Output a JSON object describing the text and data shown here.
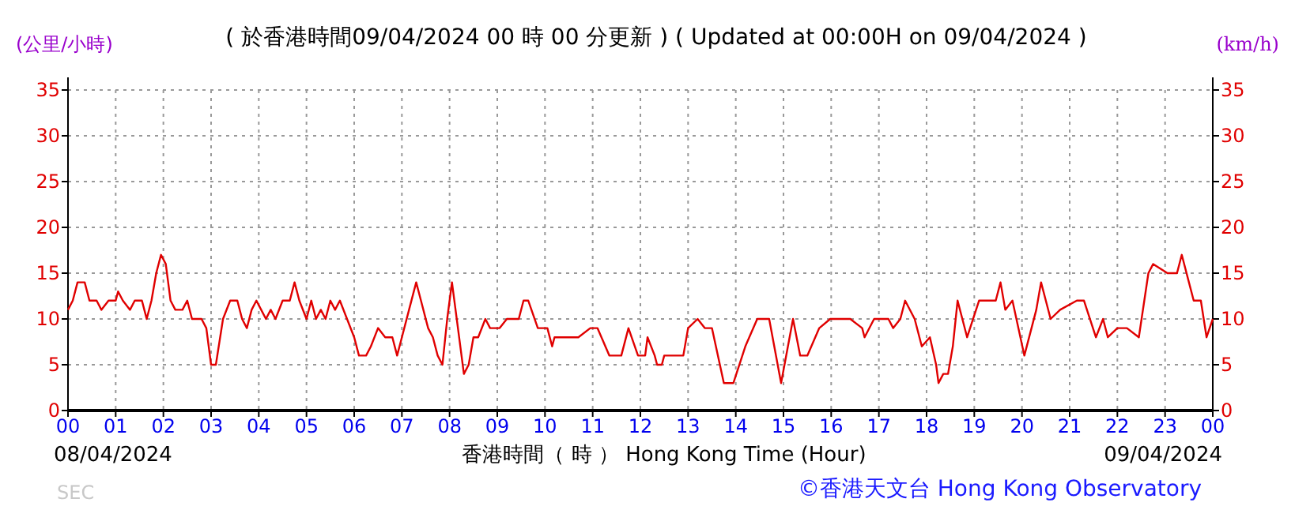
{
  "chart_data": {
    "type": "line",
    "title": "( 於香港時間09/04/2024 00 時 00 分更新 ) ( Updated at 00:00H on 09/04/2024 )",
    "xlabel": "香港時間（ 時 ） Hong Kong Time (Hour)",
    "ylabel": "(公里/小時)",
    "y2label": "(km/h)",
    "annotations": [
      "08/04/2024",
      "09/04/2024",
      "©香港天文台 Hong Kong Observatory",
      "SEC"
    ],
    "xlim": [
      0,
      24
    ],
    "xticks": [
      {
        "value": 0,
        "label": "00"
      },
      {
        "value": 1,
        "label": "01"
      },
      {
        "value": 2,
        "label": "02"
      },
      {
        "value": 3,
        "label": "03"
      },
      {
        "value": 4,
        "label": "04"
      },
      {
        "value": 5,
        "label": "05"
      },
      {
        "value": 6,
        "label": "06"
      },
      {
        "value": 7,
        "label": "07"
      },
      {
        "value": 8,
        "label": "08"
      },
      {
        "value": 9,
        "label": "09"
      },
      {
        "value": 10,
        "label": "10"
      },
      {
        "value": 11,
        "label": "11"
      },
      {
        "value": 12,
        "label": "12"
      },
      {
        "value": 13,
        "label": "13"
      },
      {
        "value": 14,
        "label": "14"
      },
      {
        "value": 15,
        "label": "15"
      },
      {
        "value": 16,
        "label": "16"
      },
      {
        "value": 17,
        "label": "17"
      },
      {
        "value": 18,
        "label": "18"
      },
      {
        "value": 19,
        "label": "19"
      },
      {
        "value": 20,
        "label": "20"
      },
      {
        "value": 21,
        "label": "21"
      },
      {
        "value": 22,
        "label": "22"
      },
      {
        "value": 23,
        "label": "23"
      },
      {
        "value": 24,
        "label": "00"
      }
    ],
    "ylim": [
      0,
      35
    ],
    "yticks": [
      0,
      5,
      10,
      15,
      20,
      25,
      30,
      35
    ],
    "y2lim": [
      0,
      35
    ],
    "y2ticks": [
      0,
      5,
      10,
      15,
      20,
      25,
      30,
      35
    ],
    "grid": true,
    "line_style": "solid",
    "series": [
      {
        "color": "#e00000",
        "x": [
          0,
          0.1,
          0.2,
          0.35,
          0.45,
          0.6,
          0.7,
          0.85,
          1.0,
          1.05,
          1.15,
          1.3,
          1.4,
          1.55,
          1.6,
          1.65,
          1.75,
          1.85,
          1.95,
          2.05,
          2.15,
          2.25,
          2.4,
          2.5,
          2.6,
          2.8,
          2.9,
          3.0,
          3.1,
          3.25,
          3.4,
          3.55,
          3.65,
          3.75,
          3.85,
          3.95,
          4.05,
          4.15,
          4.25,
          4.35,
          4.5,
          4.65,
          4.75,
          4.85,
          5.0,
          5.1,
          5.2,
          5.3,
          5.4,
          5.5,
          5.6,
          5.7,
          5.85,
          6.0,
          6.1,
          6.25,
          6.35,
          6.5,
          6.65,
          6.8,
          6.9,
          7.0,
          7.15,
          7.3,
          7.4,
          7.55,
          7.65,
          7.75,
          7.85,
          7.95,
          8.05,
          8.1,
          8.2,
          8.3,
          8.4,
          8.5,
          8.6,
          8.75,
          8.85,
          9.05,
          9.2,
          9.45,
          9.55,
          9.65,
          9.85,
          10.05,
          10.15,
          10.2,
          10.7,
          10.95,
          11.1,
          11.35,
          11.6,
          11.75,
          11.95,
          12.1,
          12.15,
          12.3,
          12.35,
          12.45,
          12.5,
          12.9,
          13.0,
          13.2,
          13.35,
          13.5,
          13.75,
          13.95,
          14.2,
          14.45,
          14.7,
          14.95,
          15.2,
          15.35,
          15.5,
          15.75,
          15.98,
          16.4,
          16.65,
          16.7,
          16.9,
          17.2,
          17.3,
          17.45,
          17.55,
          17.75,
          17.9,
          18.07,
          18.2,
          18.25,
          18.35,
          18.45,
          18.55,
          18.65,
          18.75,
          18.85,
          19.1,
          19.45,
          19.55,
          19.65,
          19.8,
          20.05,
          20.3,
          20.4,
          20.5,
          20.6,
          20.8,
          21.15,
          21.3,
          21.55,
          21.7,
          21.8,
          22.0,
          22.2,
          22.45,
          22.65,
          22.75,
          23.05,
          23.25,
          23.35,
          23.5,
          23.6,
          23.75,
          23.87,
          24.0
        ],
        "values": [
          11,
          12,
          14,
          14,
          12,
          12,
          11,
          12,
          12,
          13,
          12,
          11,
          12,
          12,
          11,
          10,
          12,
          15,
          17,
          16,
          12,
          11,
          11,
          12,
          10,
          10,
          9,
          5,
          5,
          10,
          12,
          12,
          10,
          9,
          11,
          12,
          11,
          10,
          11,
          10,
          12,
          12,
          14,
          12,
          10,
          12,
          10,
          11,
          10,
          12,
          11,
          12,
          10,
          8,
          6,
          6,
          7,
          9,
          8,
          8,
          6,
          8,
          11,
          14,
          12,
          9,
          8,
          6,
          5,
          10,
          14,
          12,
          8,
          4,
          5,
          8,
          8,
          10,
          9,
          9,
          10,
          10,
          12,
          12,
          9,
          9,
          7,
          8,
          8,
          9,
          9,
          6,
          6,
          9,
          6,
          6,
          8,
          6,
          5,
          5,
          6,
          6,
          9,
          10,
          9,
          9,
          3,
          3,
          7,
          10,
          10,
          3,
          10,
          6,
          6,
          9,
          10,
          10,
          9,
          8,
          10,
          10,
          9,
          10,
          12,
          10,
          7,
          8,
          5,
          3,
          4,
          4,
          7,
          12,
          10,
          8,
          12,
          12,
          14,
          11,
          12,
          6,
          11,
          14,
          12,
          10,
          11,
          12,
          12,
          8,
          10,
          8,
          9,
          9,
          8,
          15,
          16,
          15,
          15,
          17,
          14,
          12,
          12,
          8,
          10
        ]
      }
    ]
  }
}
